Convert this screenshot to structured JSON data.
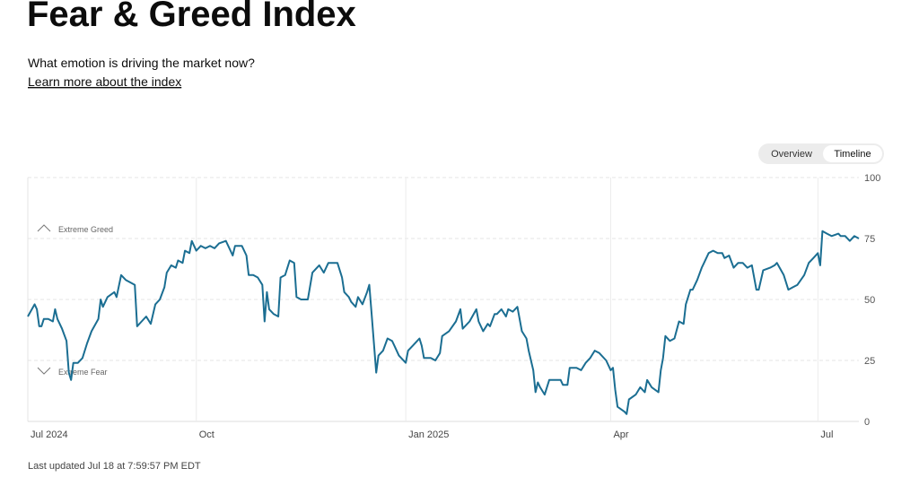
{
  "header": {
    "title": "Fear & Greed Index",
    "subtitle": "What emotion is driving the market now?",
    "link": "Learn more about the index"
  },
  "toggle": [
    "Overview",
    "Timeline"
  ],
  "chart_data": {
    "type": "line",
    "annotations": [
      "Extreme Greed",
      "Extreme Fear"
    ],
    "x": [
      0,
      3,
      4,
      5,
      6,
      7,
      9,
      11,
      12,
      13,
      15,
      17,
      18,
      19,
      20,
      22,
      24,
      26,
      28,
      31,
      32,
      33,
      35,
      38,
      39,
      41,
      43,
      45,
      47,
      48,
      50,
      52,
      54,
      56,
      58,
      60,
      61,
      63,
      65,
      66,
      68,
      69,
      71,
      72,
      74,
      76,
      78,
      80,
      82,
      84,
      87,
      88,
      90,
      91,
      94,
      96,
      97,
      99,
      101,
      103,
      104,
      105,
      106,
      108,
      110,
      111,
      113,
      115,
      117,
      118,
      120,
      123,
      125,
      127,
      128,
      130,
      132,
      136,
      138,
      139,
      141,
      142,
      144,
      145,
      147,
      149,
      150,
      151,
      153,
      154,
      156,
      158,
      160,
      161,
      163,
      166,
      167,
      169,
      172,
      173,
      174,
      177,
      179,
      181,
      182,
      185,
      188,
      190,
      191,
      194,
      197,
      198,
      200,
      202,
      203,
      205,
      206,
      208,
      210,
      211,
      213,
      215,
      217,
      219,
      220,
      222,
      223,
      224,
      225,
      227,
      229,
      231,
      234,
      235,
      237,
      238,
      241,
      243,
      245,
      247,
      249,
      251,
      254,
      256,
      257,
      258,
      259,
      262,
      263,
      264,
      267,
      269,
      271,
      272,
      274,
      277,
      278,
      279,
      280,
      282,
      284,
      286,
      288,
      289,
      291,
      292,
      294,
      296,
      297,
      299,
      301,
      303,
      305,
      306,
      308,
      310,
      312,
      314,
      316,
      318,
      320,
      321,
      323,
      326,
      328,
      329,
      332,
      334,
      336,
      338,
      341,
      343,
      345,
      347,
      348,
      349,
      351,
      353,
      356,
      357,
      359,
      361,
      363,
      365
    ],
    "series": [
      {
        "name": "Fear & Greed Index",
        "color": "#1b6e92",
        "values": [
          43,
          48,
          46,
          39,
          39,
          42,
          42,
          41,
          46,
          42,
          38,
          33,
          20,
          17,
          24,
          24,
          26,
          32,
          37,
          42,
          50,
          47,
          51,
          53,
          51,
          60,
          58,
          57,
          56,
          39,
          41,
          43,
          40,
          48,
          50,
          55,
          61,
          64,
          63,
          66,
          65,
          70,
          69,
          74,
          70,
          72,
          71,
          72,
          71,
          73,
          74,
          72,
          68,
          72,
          72,
          68,
          60,
          60,
          59,
          56,
          41,
          53,
          46,
          44,
          43,
          59,
          60,
          66,
          65,
          51,
          50,
          50,
          61,
          63,
          64,
          61,
          65,
          65,
          59,
          53,
          51,
          49,
          47,
          51,
          48,
          53,
          56,
          44,
          20,
          27,
          29,
          34,
          33,
          31,
          27,
          24,
          29,
          31,
          34,
          31,
          26,
          26,
          25,
          28,
          35,
          37,
          41,
          46,
          38,
          41,
          46,
          41,
          37,
          40,
          39,
          44,
          44,
          46,
          43,
          46,
          45,
          47,
          37,
          34,
          29,
          21,
          12,
          16,
          14,
          11,
          17,
          17,
          17,
          15,
          15,
          22,
          22,
          21,
          24,
          26,
          29,
          28,
          25,
          21,
          22,
          13,
          6,
          4,
          3,
          9,
          11,
          14,
          12,
          17,
          14,
          12,
          21,
          26,
          35,
          33,
          34,
          41,
          40,
          48,
          54,
          54,
          58,
          63,
          65,
          69,
          70,
          69,
          69,
          67,
          68,
          63,
          65,
          65,
          63,
          64,
          54,
          54,
          62,
          63,
          64,
          65,
          60,
          54,
          55,
          56,
          60,
          65,
          67,
          69,
          64,
          78,
          77,
          76,
          77,
          76,
          76,
          74,
          76,
          75
        ]
      }
    ],
    "xlim": [
      0,
      365
    ],
    "xticks": [
      {
        "value": 0,
        "label": "Jul 2024"
      },
      {
        "value": 74,
        "label": "Oct"
      },
      {
        "value": 166,
        "label": "Jan 2025"
      },
      {
        "value": 256,
        "label": "Apr"
      },
      {
        "value": 347,
        "label": "Jul"
      }
    ],
    "ylim": [
      0,
      100
    ],
    "yticks": [
      0,
      25,
      50,
      75,
      100
    ],
    "grid": true
  },
  "footer": "Last updated Jul 18 at 7:59:57 PM EDT"
}
